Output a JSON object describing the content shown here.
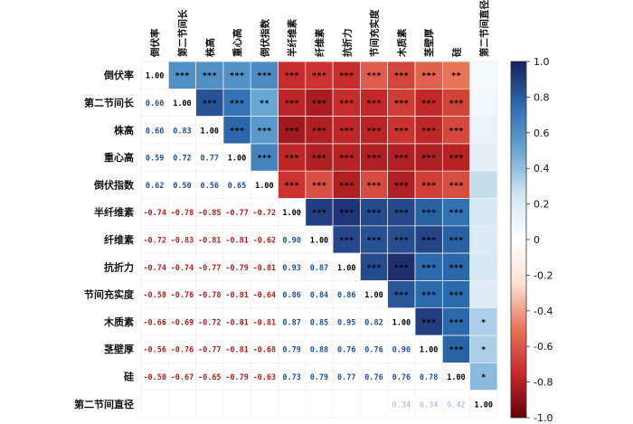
{
  "chart_data": {
    "type": "heatmap",
    "title": "",
    "variables": [
      "倒伏率",
      "第二节间长",
      "株高",
      "重心高",
      "倒伏指数",
      "半纤维素",
      "纤维素",
      "抗折力",
      "节间充实度",
      "木质素",
      "茎壁厚",
      "硅",
      "第二节间直径"
    ],
    "correlations": [
      [
        1.0,
        0.6,
        0.6,
        0.59,
        0.62,
        -0.74,
        -0.72,
        -0.74,
        -0.58,
        -0.66,
        -0.56,
        -0.5,
        0.06
      ],
      [
        0.6,
        1.0,
        0.83,
        0.72,
        0.5,
        -0.78,
        -0.83,
        -0.74,
        -0.76,
        -0.69,
        -0.76,
        -0.67,
        0.08
      ],
      [
        0.6,
        0.83,
        1.0,
        0.77,
        0.56,
        -0.85,
        -0.81,
        -0.77,
        -0.78,
        -0.72,
        -0.77,
        -0.65,
        0.12
      ],
      [
        0.59,
        0.72,
        0.77,
        1.0,
        0.65,
        -0.77,
        -0.81,
        -0.79,
        -0.81,
        -0.81,
        -0.81,
        -0.79,
        0.15
      ],
      [
        0.62,
        0.5,
        0.56,
        0.65,
        1.0,
        -0.72,
        -0.62,
        -0.81,
        -0.64,
        -0.81,
        -0.68,
        -0.63,
        0.28
      ],
      [
        -0.74,
        -0.78,
        -0.85,
        -0.77,
        -0.72,
        1.0,
        0.9,
        0.93,
        0.86,
        0.87,
        0.79,
        0.73,
        0.22
      ],
      [
        -0.72,
        -0.83,
        -0.81,
        -0.81,
        -0.62,
        0.9,
        1.0,
        0.87,
        0.84,
        0.85,
        0.88,
        0.79,
        0.2
      ],
      [
        -0.74,
        -0.74,
        -0.77,
        -0.79,
        -0.81,
        0.93,
        0.87,
        1.0,
        0.86,
        0.95,
        0.76,
        0.77,
        0.22
      ],
      [
        -0.58,
        -0.76,
        -0.78,
        -0.81,
        -0.64,
        0.86,
        0.84,
        0.86,
        1.0,
        0.82,
        0.76,
        0.76,
        0.18
      ],
      [
        -0.66,
        -0.69,
        -0.72,
        -0.81,
        -0.81,
        0.87,
        0.85,
        0.95,
        0.82,
        1.0,
        0.9,
        0.76,
        0.34
      ],
      [
        -0.56,
        -0.76,
        -0.77,
        -0.81,
        -0.68,
        0.79,
        0.88,
        0.76,
        0.76,
        0.9,
        1.0,
        0.78,
        0.34
      ],
      [
        -0.5,
        -0.67,
        -0.65,
        -0.79,
        -0.63,
        0.73,
        0.79,
        0.77,
        0.76,
        0.76,
        0.78,
        1.0,
        0.42
      ],
      [
        0.06,
        0.08,
        0.12,
        0.15,
        0.28,
        0.22,
        0.2,
        0.22,
        0.18,
        0.34,
        0.34,
        0.42,
        1.0
      ]
    ],
    "lower_labels": [
      [],
      [
        "0.60"
      ],
      [
        "0.60",
        "0.83"
      ],
      [
        "0.59",
        "0.72",
        "0.77"
      ],
      [
        "0.62",
        "0.50",
        "0.56",
        "0.65"
      ],
      [
        "-0.74",
        "-0.78",
        "-0.85",
        "-0.77",
        "-0.72"
      ],
      [
        "-0.72",
        "-0.83",
        "-0.81",
        "-0.81",
        "-0.62",
        "0.90"
      ],
      [
        "-0.74",
        "-0.74",
        "-0.77",
        "-0.79",
        "-0.81",
        "0.93",
        "0.87"
      ],
      [
        "-0.58",
        "-0.76",
        "-0.78",
        "-0.81",
        "-0.64",
        "0.86",
        "0.84",
        "0.86"
      ],
      [
        "-0.66",
        "-0.69",
        "-0.72",
        "-0.81",
        "-0.81",
        "0.87",
        "0.85",
        "0.95",
        "0.82"
      ],
      [
        "-0.56",
        "-0.76",
        "-0.77",
        "-0.81",
        "-0.68",
        "0.79",
        "0.88",
        "0.76",
        "0.76",
        "0.90"
      ],
      [
        "-0.50",
        "-0.67",
        "-0.65",
        "-0.79",
        "-0.63",
        "0.73",
        "0.79",
        "0.77",
        "0.76",
        "0.76",
        "0.78"
      ],
      [
        "",
        "",
        "",
        "",
        "",
        "",
        "",
        "",
        "",
        "0.34",
        "0.34",
        "0.42"
      ]
    ],
    "diagonal_label": "1.00",
    "upper_significance": [
      [
        "",
        "***",
        "***",
        "***",
        "***",
        "***",
        "***",
        "***",
        "***",
        "***",
        "***",
        "**",
        ""
      ],
      [
        "",
        "",
        "***",
        "***",
        "**",
        "***",
        "***",
        "***",
        "***",
        "***",
        "***",
        "***",
        ""
      ],
      [
        "",
        "",
        "",
        "***",
        "***",
        "***",
        "***",
        "***",
        "***",
        "***",
        "***",
        "***",
        ""
      ],
      [
        "",
        "",
        "",
        "",
        "***",
        "***",
        "***",
        "***",
        "***",
        "***",
        "***",
        "***",
        ""
      ],
      [
        "",
        "",
        "",
        "",
        "",
        "***",
        "***",
        "***",
        "***",
        "***",
        "***",
        "***",
        ""
      ],
      [
        "",
        "",
        "",
        "",
        "",
        "",
        "***",
        "***",
        "***",
        "***",
        "***",
        "***",
        ""
      ],
      [
        "",
        "",
        "",
        "",
        "",
        "",
        "",
        "***",
        "***",
        "***",
        "***",
        "***",
        ""
      ],
      [
        "",
        "",
        "",
        "",
        "",
        "",
        "",
        "",
        "***",
        "***",
        "***",
        "***",
        ""
      ],
      [
        "",
        "",
        "",
        "",
        "",
        "",
        "",
        "",
        "",
        "***",
        "***",
        "***",
        ""
      ],
      [
        "",
        "",
        "",
        "",
        "",
        "",
        "",
        "",
        "",
        "",
        "***",
        "***",
        "*"
      ],
      [
        "",
        "",
        "",
        "",
        "",
        "",
        "",
        "",
        "",
        "",
        "",
        "***",
        "*"
      ],
      [
        "",
        "",
        "",
        "",
        "",
        "",
        "",
        "",
        "",
        "",
        "",
        "",
        "*"
      ]
    ],
    "colorbar": {
      "min": -1.0,
      "max": 1.0,
      "ticks": [
        1.0,
        0.8,
        0.6,
        0.4,
        0.2,
        0,
        -0.2,
        -0.4,
        -0.6,
        -0.8,
        -1.0
      ],
      "tick_labels": [
        "1.0",
        "0.8",
        "0.6",
        "0.4",
        "0.2",
        "0",
        "-0.2",
        "-0.4",
        "-0.6",
        "-0.8",
        "-1.0"
      ],
      "colors": [
        "#67000d",
        "#c62a2a",
        "#e8745a",
        "#fbe0d2",
        "#ffffff",
        "#d2e5f2",
        "#6aa6d2",
        "#2d6db0",
        "#1b1f5e"
      ]
    },
    "text_colors": {
      "negative": "#b71c1c",
      "positive": "#1f4e9b",
      "diagonal": "#000000",
      "faint": "#9db4d6"
    }
  }
}
